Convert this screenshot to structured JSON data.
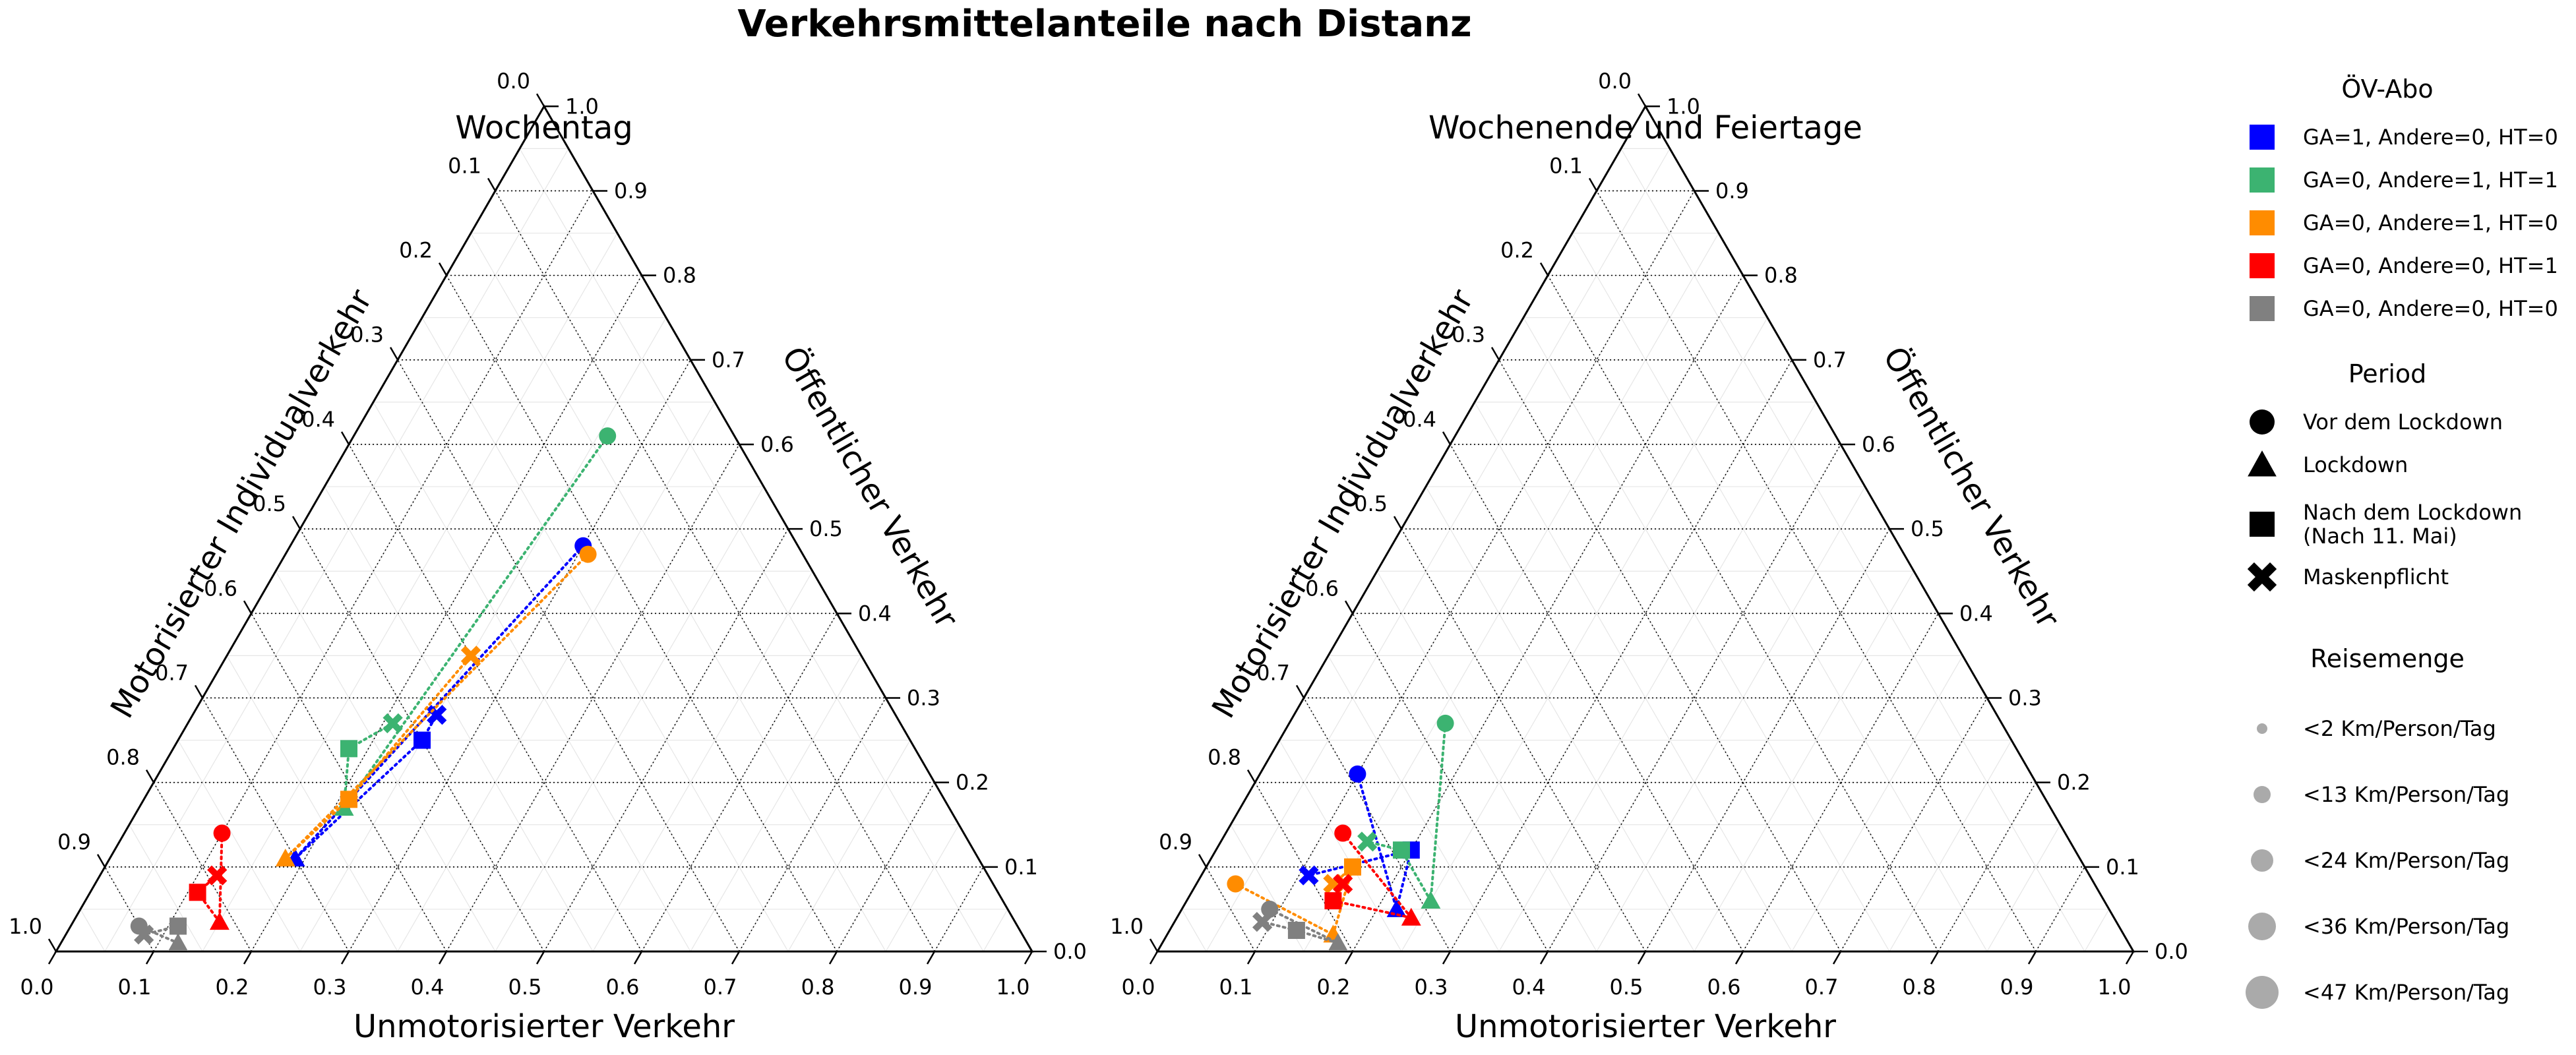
{
  "figure_title": "Verkehrsmittelanteile nach Distanz",
  "chart_data": {
    "type": "scatter",
    "subtype": "ternary",
    "components": {
      "bottom": "Unmotorisierter Verkehr",
      "right": "Öffentlicher Verkehr",
      "left": "Motorisierter Individualverkehr"
    },
    "ticks": [
      "0.0",
      "0.1",
      "0.2",
      "0.3",
      "0.4",
      "0.5",
      "0.6",
      "0.7",
      "0.8",
      "0.9",
      "1.0"
    ],
    "grid": true,
    "colors": {
      "blue": "#0000ff",
      "green": "#3cb371",
      "orange": "#ff8c00",
      "red": "#ff0000",
      "gray": "#808080"
    },
    "panels": [
      {
        "title": "Wochentag",
        "series": [
          {
            "color": "blue",
            "points": [
              {
                "marker": "circle",
                "u": 0.3,
                "o": 0.48
              },
              {
                "marker": "triangle",
                "u": 0.19,
                "o": 0.11
              },
              {
                "marker": "square",
                "u": 0.25,
                "o": 0.25
              },
              {
                "marker": "cross",
                "u": 0.25,
                "o": 0.28
              }
            ]
          },
          {
            "color": "green",
            "points": [
              {
                "marker": "circle",
                "u": 0.26,
                "o": 0.61
              },
              {
                "marker": "triangle",
                "u": 0.21,
                "o": 0.17
              },
              {
                "marker": "square",
                "u": 0.18,
                "o": 0.24
              },
              {
                "marker": "cross",
                "u": 0.21,
                "o": 0.27
              }
            ]
          },
          {
            "color": "orange",
            "points": [
              {
                "marker": "circle",
                "u": 0.31,
                "o": 0.47
              },
              {
                "marker": "triangle",
                "u": 0.18,
                "o": 0.11
              },
              {
                "marker": "square",
                "u": 0.21,
                "o": 0.18
              },
              {
                "marker": "cross",
                "u": 0.25,
                "o": 0.35
              }
            ]
          },
          {
            "color": "red",
            "points": [
              {
                "marker": "circle",
                "u": 0.1,
                "o": 0.14
              },
              {
                "marker": "triangle",
                "u": 0.15,
                "o": 0.035
              },
              {
                "marker": "square",
                "u": 0.11,
                "o": 0.07
              },
              {
                "marker": "cross",
                "u": 0.12,
                "o": 0.09
              }
            ]
          },
          {
            "color": "gray",
            "points": [
              {
                "marker": "circle",
                "u": 0.07,
                "o": 0.03
              },
              {
                "marker": "triangle",
                "u": 0.12,
                "o": 0.01
              },
              {
                "marker": "square",
                "u": 0.11,
                "o": 0.03
              },
              {
                "marker": "cross",
                "u": 0.08,
                "o": 0.02
              }
            ]
          }
        ]
      },
      {
        "title": "Wochenende und Feiertage",
        "series": [
          {
            "color": "blue",
            "points": [
              {
                "marker": "circle",
                "u": 0.1,
                "o": 0.21
              },
              {
                "marker": "triangle",
                "u": 0.22,
                "o": 0.05
              },
              {
                "marker": "square",
                "u": 0.2,
                "o": 0.12
              },
              {
                "marker": "cross",
                "u": 0.11,
                "o": 0.09
              }
            ]
          },
          {
            "color": "green",
            "points": [
              {
                "marker": "circle",
                "u": 0.16,
                "o": 0.27
              },
              {
                "marker": "triangle",
                "u": 0.25,
                "o": 0.06
              },
              {
                "marker": "square",
                "u": 0.19,
                "o": 0.12
              },
              {
                "marker": "cross",
                "u": 0.15,
                "o": 0.13
              }
            ]
          },
          {
            "color": "orange",
            "points": [
              {
                "marker": "circle",
                "u": 0.04,
                "o": 0.08
              },
              {
                "marker": "triangle",
                "u": 0.17,
                "o": 0.02
              },
              {
                "marker": "square",
                "u": 0.15,
                "o": 0.1
              },
              {
                "marker": "cross",
                "u": 0.14,
                "o": 0.08
              }
            ]
          },
          {
            "color": "red",
            "points": [
              {
                "marker": "circle",
                "u": 0.12,
                "o": 0.14
              },
              {
                "marker": "triangle",
                "u": 0.24,
                "o": 0.04
              },
              {
                "marker": "square",
                "u": 0.15,
                "o": 0.06
              },
              {
                "marker": "cross",
                "u": 0.15,
                "o": 0.08
              }
            ]
          },
          {
            "color": "gray",
            "points": [
              {
                "marker": "circle",
                "u": 0.09,
                "o": 0.05
              },
              {
                "marker": "triangle",
                "u": 0.18,
                "o": 0.01
              },
              {
                "marker": "square",
                "u": 0.13,
                "o": 0.025
              },
              {
                "marker": "cross",
                "u": 0.09,
                "o": 0.035
              }
            ]
          }
        ]
      }
    ],
    "legend": {
      "placement": "right",
      "groups": [
        {
          "title": "ÖV-Abo",
          "items": [
            {
              "marker": "square",
              "color": "blue",
              "label": "GA=1, Andere=0, HT=0"
            },
            {
              "marker": "square",
              "color": "green",
              "label": "GA=0, Andere=1, HT=1"
            },
            {
              "marker": "square",
              "color": "orange",
              "label": "GA=0, Andere=1, HT=0"
            },
            {
              "marker": "square",
              "color": "red",
              "label": "GA=0, Andere=0, HT=1"
            },
            {
              "marker": "square",
              "color": "gray",
              "label": "GA=0, Andere=0, HT=0"
            }
          ]
        },
        {
          "title": "Period",
          "items": [
            {
              "marker": "circle",
              "color": "black",
              "label": "Vor dem Lockdown"
            },
            {
              "marker": "triangle",
              "color": "black",
              "label": "Lockdown"
            },
            {
              "marker": "square",
              "color": "black",
              "label": "Nach dem Lockdown\n(Nach 11. Mai)"
            },
            {
              "marker": "cross",
              "color": "black",
              "label": "Maskenpflicht"
            }
          ]
        },
        {
          "title": "Reisemenge",
          "items": [
            {
              "marker": "circle",
              "color": "#aaaaaa",
              "size": 1,
              "label": "<2 Km/Person/Tag"
            },
            {
              "marker": "circle",
              "color": "#aaaaaa",
              "size": 2,
              "label": "<13 Km/Person/Tag"
            },
            {
              "marker": "circle",
              "color": "#aaaaaa",
              "size": 3,
              "label": "<24 Km/Person/Tag"
            },
            {
              "marker": "circle",
              "color": "#aaaaaa",
              "size": 4,
              "label": "<36 Km/Person/Tag"
            },
            {
              "marker": "circle",
              "color": "#aaaaaa",
              "size": 5,
              "label": "<47 Km/Person/Tag"
            }
          ]
        }
      ]
    }
  }
}
